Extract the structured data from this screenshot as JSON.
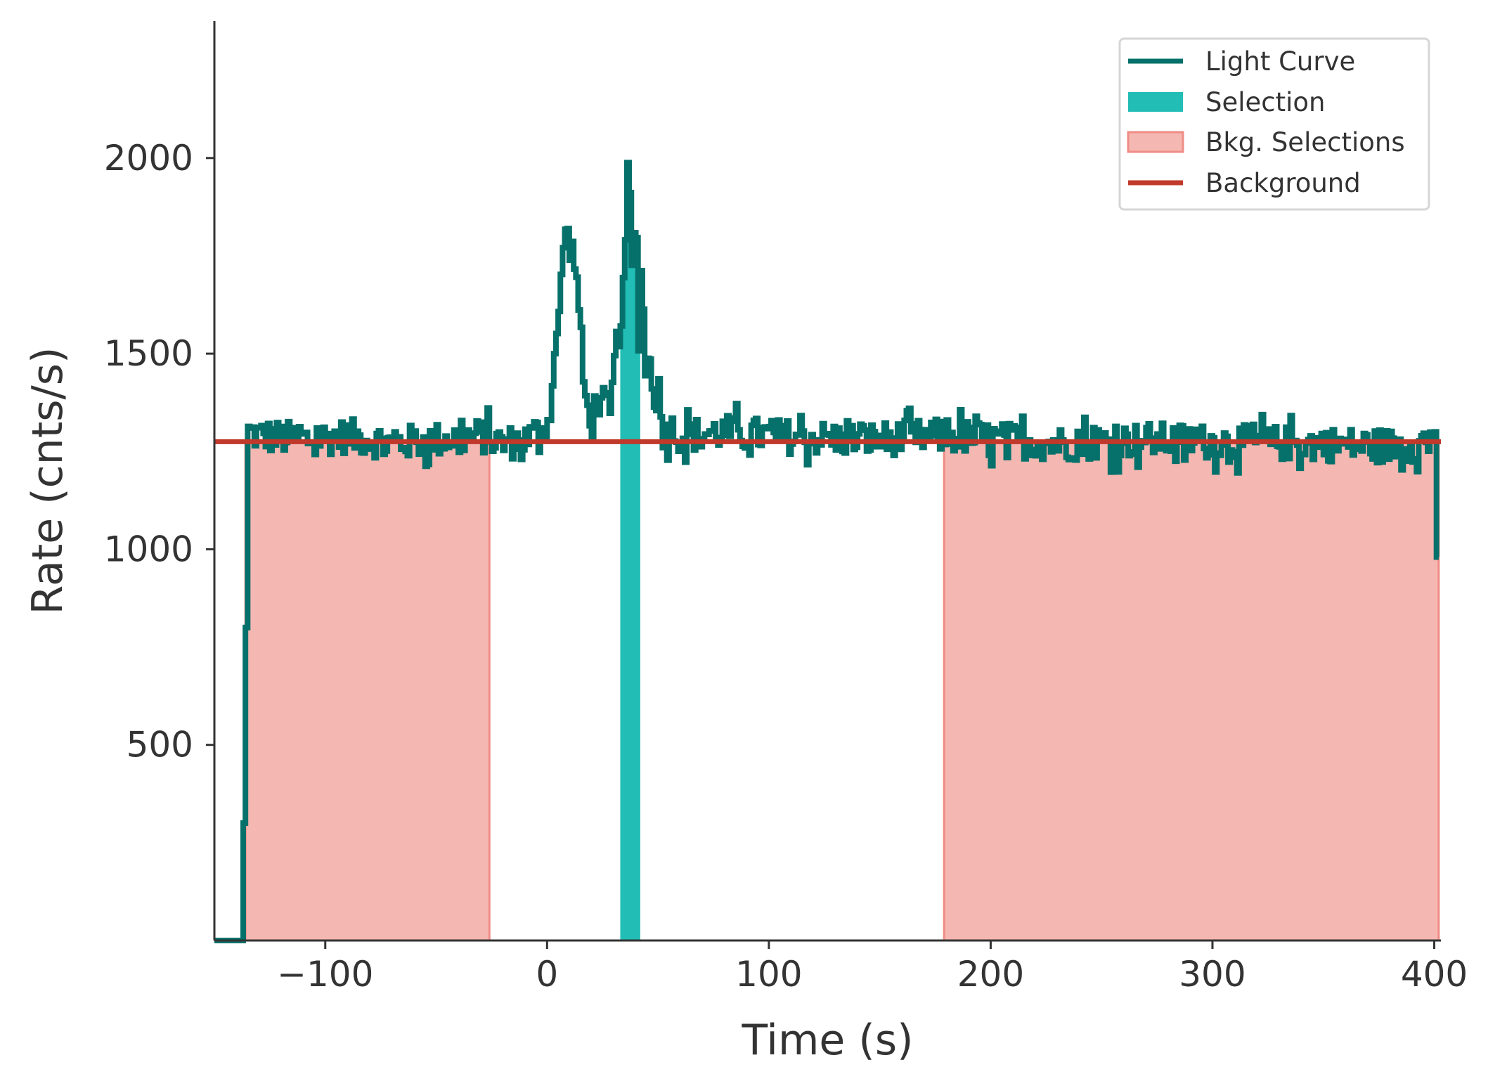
{
  "chart_data": {
    "type": "line",
    "title": "",
    "xlabel": "Time (s)",
    "ylabel": "Rate (cnts/s)",
    "xlim": [
      -150,
      403
    ],
    "ylim": [
      0,
      2350
    ],
    "xticks": [
      -100,
      0,
      100,
      200,
      300,
      400
    ],
    "xtick_labels": [
      "−100",
      "0",
      "100",
      "200",
      "300",
      "400"
    ],
    "yticks": [
      500,
      1000,
      1500,
      2000
    ],
    "ytick_labels": [
      "500",
      "1000",
      "1500",
      "2000"
    ],
    "grid": false,
    "legend_position": "top-right",
    "legend": [
      "Light Curve",
      "Selection",
      "Bkg. Selections",
      "Background"
    ],
    "background_level": 1275,
    "background_range": [
      -150,
      403
    ],
    "selection": [
      33,
      42
    ],
    "bkg_selections": [
      [
        -136,
        -26
      ],
      [
        179,
        402
      ]
    ],
    "colors": {
      "light_curve": "#06706a",
      "selection": "#22bdb5",
      "bkg_fill": "#f5b7b1",
      "bkg_edge": "#f08c86",
      "background": "#c0392b",
      "axis": "#333333"
    },
    "light_curve_key_points": {
      "x": [
        -150,
        -138,
        -137,
        -135,
        -130,
        -110,
        -90,
        -70,
        -50,
        -30,
        -20,
        -10,
        0,
        3,
        5,
        7,
        8,
        10,
        12,
        14,
        16,
        18,
        20,
        22,
        24,
        26,
        28,
        30,
        32,
        34,
        35,
        36,
        37,
        38,
        39,
        40,
        41,
        42,
        43,
        44,
        46,
        48,
        50,
        52,
        55,
        60,
        80,
        100,
        140,
        180,
        230,
        270,
        300,
        340,
        380,
        398,
        400,
        401,
        402
      ],
      "y": [
        0,
        0,
        300,
        1300,
        1290,
        1280,
        1290,
        1270,
        1280,
        1290,
        1270,
        1280,
        1320,
        1500,
        1580,
        1800,
        1810,
        1780,
        1740,
        1620,
        1430,
        1350,
        1320,
        1400,
        1360,
        1380,
        1320,
        1480,
        1560,
        1650,
        1800,
        1950,
        1900,
        1700,
        1820,
        1760,
        1550,
        1720,
        1600,
        1500,
        1460,
        1400,
        1380,
        1300,
        1310,
        1290,
        1300,
        1290,
        1280,
        1290,
        1270,
        1280,
        1275,
        1270,
        1265,
        1270,
        1300,
        980,
        980
      ]
    },
    "light_curve_noise_amplitude": 45,
    "light_curve_bin_width": 1
  }
}
